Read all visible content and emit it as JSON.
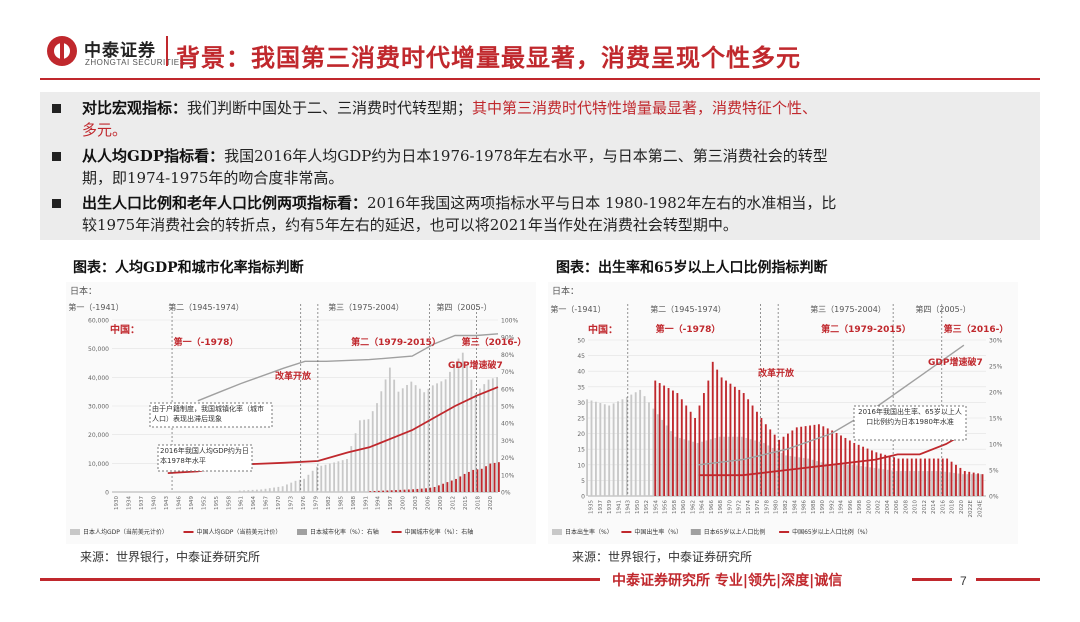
{
  "header": {
    "logo_cn": "中泰证券",
    "logo_en": "ZHONGTAI SECURITIES",
    "title": "背景：我国第三消费时代增量最显著，消费呈现个性多元"
  },
  "bullets": [
    {
      "strong": "对比宏观指标：",
      "normal": "我们判断中国处于二、三消费时代转型期；",
      "red": "其中第三消费时代特性增量最显著，消费特征个性、",
      "line2": "多元。"
    },
    {
      "strong": "从人均GDP指标看：",
      "normal": "我国2016年人均GDP约为日本1976-1978年左右水平，与日本第二、第三消费社会的转型",
      "line2": "期，即1974-1975年的吻合度非常高。"
    },
    {
      "strong": "出生人口比例和老年人口比例两项指标看：",
      "normal": "2016年我国这两项指标水平与日本 1980-1982年左右的水准相当，比",
      "line2": "较1975年消费社会的转折点，约有5年左右的延迟，也可以将2021年当作处在消费社会转型期中。"
    }
  ],
  "chart1": {
    "caption": "图表：人均GDP和城市化率指标判断",
    "japan_label": "日本：",
    "china_label": "中国：",
    "jp_eras": [
      "第一（-1941）",
      "第二（1945-1974）",
      "第三（1975-2004）",
      "第四（2005-）"
    ],
    "cn_eras": [
      "第一（-1978）",
      "第二（1979-2015）",
      "第三（2016-）"
    ],
    "annotations": {
      "reform": "改革开放",
      "gdp_growth": "GDP增速破7",
      "note1": "由于户籍制度，我国城镇化率（城市人口）表现出滞后现象",
      "note2": "2016年我国人均GDP约为日本1978年水平"
    },
    "legend": [
      "日本人均GDP（当前美元计价）",
      "中国人均GDP（当前美元计价）",
      "日本城市化率（%）：右轴",
      "中国城市化率（%）：右轴"
    ],
    "source": "来源：世界银行，中泰证券研究所",
    "colors": {
      "jp_gdp": "#c8c8c8",
      "cn_gdp": "#c0282d",
      "jp_urban": "#a0a0a0",
      "cn_urban": "#c0282d"
    }
  },
  "chart2": {
    "caption": "图表：出生率和65岁以上人口比例指标判断",
    "japan_label": "日本：",
    "china_label": "中国：",
    "jp_eras": [
      "第一（-1941）",
      "第二（1945-1974）",
      "第三（1975-2004）",
      "第四（2005-）"
    ],
    "cn_eras": [
      "第一（-1978）",
      "第二（1979-2015）",
      "第三（2016-）"
    ],
    "annotations": {
      "reform": "改革开放",
      "gdp_growth": "GDP增速破7",
      "note": "2016年我国出生率、65岁以上人口比例约为日本1980年水准"
    },
    "legend": [
      "日本出生率（%）",
      "中国出生率（%）",
      "日本65岁以上人口比例",
      "中国65岁以上人口比例（%）"
    ],
    "source": "来源：世界银行，中泰证券研究所",
    "colors": {
      "jp_birth": "#c8c8c8",
      "cn_birth": "#c0282d",
      "jp_old": "#a0a0a0",
      "cn_old": "#c0282d"
    }
  },
  "chart_data": [
    {
      "type": "bar",
      "title": "图表：人均GDP和城市化率指标判断",
      "x_range": [
        1930,
        2020
      ],
      "ylim": [
        0,
        60000
      ],
      "ylim_right": [
        0,
        100
      ],
      "y_ticks": [
        "0",
        "10,000",
        "20,000",
        "30,000",
        "40,000",
        "50,000",
        "60,000"
      ],
      "y2_ticks": [
        "0%",
        "10%",
        "20%",
        "30%",
        "40%",
        "50%",
        "60%",
        "70%",
        "80%",
        "90%",
        "100%"
      ],
      "x_ticks": [
        "1930",
        "1934",
        "1937",
        "1940",
        "1943",
        "1946",
        "1949",
        "1952",
        "1955",
        "1958",
        "1961",
        "1964",
        "1967",
        "1970",
        "1973",
        "1976",
        "1979",
        "1982",
        "1985",
        "1988",
        "1991",
        "1994",
        "1997",
        "2000",
        "2003",
        "2006",
        "2009",
        "2012",
        "2015",
        "2018",
        "2020"
      ],
      "series": [
        {
          "name": "日本人均GDP（当前美元计价）",
          "kind": "bar",
          "x": [
            1960,
            1965,
            1970,
            1973,
            1975,
            1978,
            1980,
            1985,
            1988,
            1990,
            1992,
            1995,
            1997,
            2000,
            2003,
            2005,
            2008,
            2010,
            2012,
            2015,
            2018,
            2020
          ],
          "values": [
            500,
            900,
            2000,
            3900,
            4600,
            8800,
            9500,
            11500,
            25000,
            25400,
            31000,
            43400,
            35000,
            38500,
            34800,
            37200,
            39300,
            44500,
            48600,
            34500,
            39200,
            40100
          ]
        },
        {
          "name": "中国人均GDP（当前美元计价）",
          "kind": "bar",
          "x": [
            1990,
            1995,
            2000,
            2003,
            2005,
            2008,
            2010,
            2012,
            2014,
            2016,
            2018,
            2020
          ],
          "values": [
            300,
            600,
            950,
            1300,
            1750,
            3450,
            4550,
            6300,
            7700,
            8100,
            9900,
            10400
          ]
        },
        {
          "name": "日本城市化率（%）：右轴",
          "kind": "line",
          "x": [
            1950,
            1955,
            1960,
            1970,
            1975,
            1980,
            1990,
            2000,
            2005,
            2010,
            2015,
            2020
          ],
          "values": [
            53,
            58,
            63,
            72,
            76,
            76,
            77,
            79,
            86,
            91,
            91,
            92
          ]
        },
        {
          "name": "中国城市化率（%）：右轴",
          "kind": "line",
          "x": [
            1943,
            1950,
            1960,
            1970,
            1978,
            1985,
            1990,
            1995,
            2000,
            2005,
            2010,
            2015,
            2020
          ],
          "values": [
            11,
            12,
            16,
            17,
            18,
            23,
            26,
            31,
            36,
            43,
            50,
            56,
            61
          ]
        }
      ]
    },
    {
      "type": "bar",
      "title": "图表：出生率和65岁以上人口比例指标判断",
      "x_range": [
        1935,
        2025
      ],
      "ylim": [
        0,
        50
      ],
      "ylim_right": [
        0,
        30
      ],
      "y_ticks": [
        "0",
        "5",
        "10",
        "15",
        "20",
        "25",
        "30",
        "35",
        "40",
        "45",
        "50"
      ],
      "y2_ticks": [
        "0%",
        "5%",
        "10%",
        "15%",
        "20%",
        "25%",
        "30%"
      ],
      "x_ticks": [
        "1935",
        "1937",
        "1939",
        "1941",
        "1943",
        "1950",
        "1952",
        "1954",
        "1956",
        "1958",
        "1960",
        "1962",
        "1964",
        "1966",
        "1968",
        "1970",
        "1972",
        "1974",
        "1976",
        "1978",
        "1980",
        "1982",
        "1984",
        "1986",
        "1988",
        "1990",
        "1992",
        "1994",
        "1996",
        "1998",
        "2000",
        "2002",
        "2004",
        "2006",
        "2008",
        "2010",
        "2012",
        "2014",
        "2016",
        "2018",
        "2020",
        "2022E",
        "2024E"
      ],
      "series": [
        {
          "name": "日本出生率（%）",
          "kind": "bar",
          "x": [
            1935,
            1940,
            1943,
            1947,
            1950,
            1955,
            1960,
            1965,
            1970,
            1975,
            1980,
            1985,
            1990,
            1995,
            2000,
            2005,
            2010,
            2015,
            2020,
            2024
          ],
          "values": [
            31,
            29,
            31,
            34,
            28,
            19,
            17,
            19,
            19,
            17,
            13,
            12,
            10,
            10,
            9,
            8,
            8,
            8,
            7,
            7
          ]
        },
        {
          "name": "中国出生率（%）",
          "kind": "bar",
          "x": [
            1950,
            1955,
            1959,
            1962,
            1963,
            1965,
            1970,
            1975,
            1978,
            1982,
            1987,
            1990,
            1995,
            2000,
            2005,
            2010,
            2016,
            2020,
            2024
          ],
          "values": [
            37,
            33,
            25,
            37,
            43,
            38,
            33,
            23,
            18,
            22,
            23,
            21,
            17,
            14,
            12,
            12,
            12,
            8,
            7
          ]
        },
        {
          "name": "日本65岁以上人口比例",
          "kind": "line",
          "x": [
            1960,
            1970,
            1980,
            1990,
            2000,
            2005,
            2010,
            2015,
            2020
          ],
          "values": [
            6,
            7,
            9,
            12,
            17,
            20,
            23,
            26,
            29
          ]
        },
        {
          "name": "中国65岁以上人口比例（%）",
          "kind": "line",
          "x": [
            1960,
            1970,
            1980,
            1990,
            2000,
            2005,
            2010,
            2016,
            2020
          ],
          "values": [
            4,
            4,
            5,
            6,
            7,
            8,
            8,
            10,
            12
          ]
        }
      ]
    }
  ]
}
